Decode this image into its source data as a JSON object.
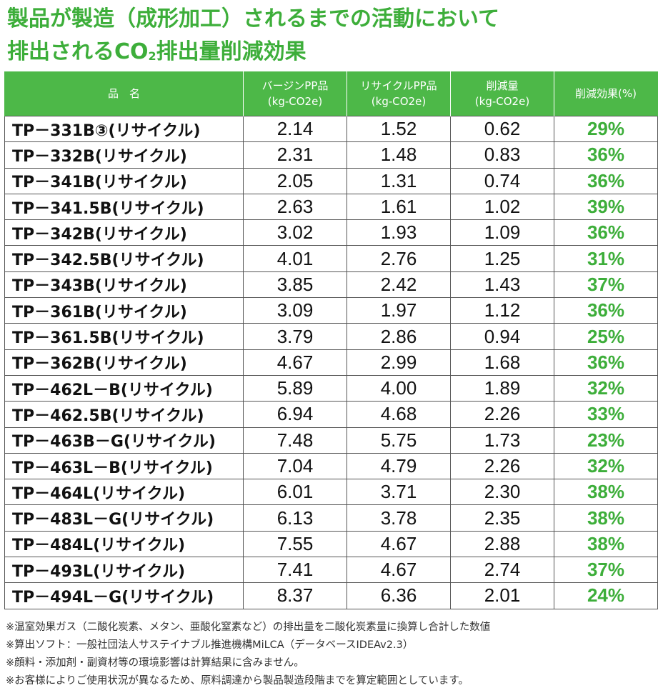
{
  "title": {
    "line1": "製品が製造（成形加工）されるまでの活動において",
    "line2_prefix": "排出されるCO",
    "line2_sub": "2",
    "line2_suffix": "排出量削減効果"
  },
  "table": {
    "headers": {
      "name": "品　名",
      "virgin_l1": "バージンPP品",
      "virgin_l2": "(kg-CO2e)",
      "recycled_l1": "リサイクルPP品",
      "recycled_l2": "(kg-CO2e)",
      "reduction_l1": "削減量",
      "reduction_l2": "(kg-CO2e)",
      "effect": "削減効果(%)"
    },
    "rows": [
      {
        "name": "TP－331B③(リサイクル)",
        "virgin": "2.14",
        "recycled": "1.52",
        "reduction": "0.62",
        "effect": "29%"
      },
      {
        "name": "TP－332B(リサイクル)",
        "virgin": "2.31",
        "recycled": "1.48",
        "reduction": "0.83",
        "effect": "36%"
      },
      {
        "name": "TP－341B(リサイクル)",
        "virgin": "2.05",
        "recycled": "1.31",
        "reduction": "0.74",
        "effect": "36%"
      },
      {
        "name": "TP－341.5B(リサイクル)",
        "virgin": "2.63",
        "recycled": "1.61",
        "reduction": "1.02",
        "effect": "39%"
      },
      {
        "name": "TP－342B(リサイクル)",
        "virgin": "3.02",
        "recycled": "1.93",
        "reduction": "1.09",
        "effect": "36%"
      },
      {
        "name": "TP－342.5B(リサイクル)",
        "virgin": "4.01",
        "recycled": "2.76",
        "reduction": "1.25",
        "effect": "31%"
      },
      {
        "name": "TP－343B(リサイクル)",
        "virgin": "3.85",
        "recycled": "2.42",
        "reduction": "1.43",
        "effect": "37%"
      },
      {
        "name": "TP－361B(リサイクル)",
        "virgin": "3.09",
        "recycled": "1.97",
        "reduction": "1.12",
        "effect": "36%"
      },
      {
        "name": "TP－361.5B(リサイクル)",
        "virgin": "3.79",
        "recycled": "2.86",
        "reduction": "0.94",
        "effect": "25%"
      },
      {
        "name": "TP－362B(リサイクル)",
        "virgin": "4.67",
        "recycled": "2.99",
        "reduction": "1.68",
        "effect": "36%"
      },
      {
        "name": "TP－462L－B(リサイクル)",
        "virgin": "5.89",
        "recycled": "4.00",
        "reduction": "1.89",
        "effect": "32%"
      },
      {
        "name": "TP－462.5B(リサイクル)",
        "virgin": "6.94",
        "recycled": "4.68",
        "reduction": "2.26",
        "effect": "33%"
      },
      {
        "name": "TP－463B－G(リサイクル)",
        "virgin": "7.48",
        "recycled": "5.75",
        "reduction": "1.73",
        "effect": "23%"
      },
      {
        "name": "TP－463L－B(リサイクル)",
        "virgin": "7.04",
        "recycled": "4.79",
        "reduction": "2.26",
        "effect": "32%"
      },
      {
        "name": "TP－464L(リサイクル)",
        "virgin": "6.01",
        "recycled": "3.71",
        "reduction": "2.30",
        "effect": "38%"
      },
      {
        "name": "TP－483L－G(リサイクル)",
        "virgin": "6.13",
        "recycled": "3.78",
        "reduction": "2.35",
        "effect": "38%"
      },
      {
        "name": "TP－484L(リサイクル)",
        "virgin": "7.55",
        "recycled": "4.67",
        "reduction": "2.88",
        "effect": "38%"
      },
      {
        "name": "TP－493L(リサイクル)",
        "virgin": "7.41",
        "recycled": "4.67",
        "reduction": "2.74",
        "effect": "37%"
      },
      {
        "name": "TP－494L－G(リサイクル)",
        "virgin": "8.37",
        "recycled": "6.36",
        "reduction": "2.01",
        "effect": "24%"
      }
    ]
  },
  "notes": [
    "※温室効果ガス（二酸化炭素、メタン、亜酸化窒素など）の排出量を二酸化炭素量に換算し合計した数値",
    "※算出ソフト：一般社団法人サステイナブル推進機構MiLCA（データベースIDEAv2.3）",
    "※顔料・添加剤・副資材等の環境影響は計算結果に含みません。",
    "※お客様によりご使用状況が異なるため、原料調達から製品製造段階までを算定範囲としています。"
  ],
  "colors": {
    "accent_green": "#3dae3a",
    "header_green": "#4db848",
    "border": "#555555"
  }
}
